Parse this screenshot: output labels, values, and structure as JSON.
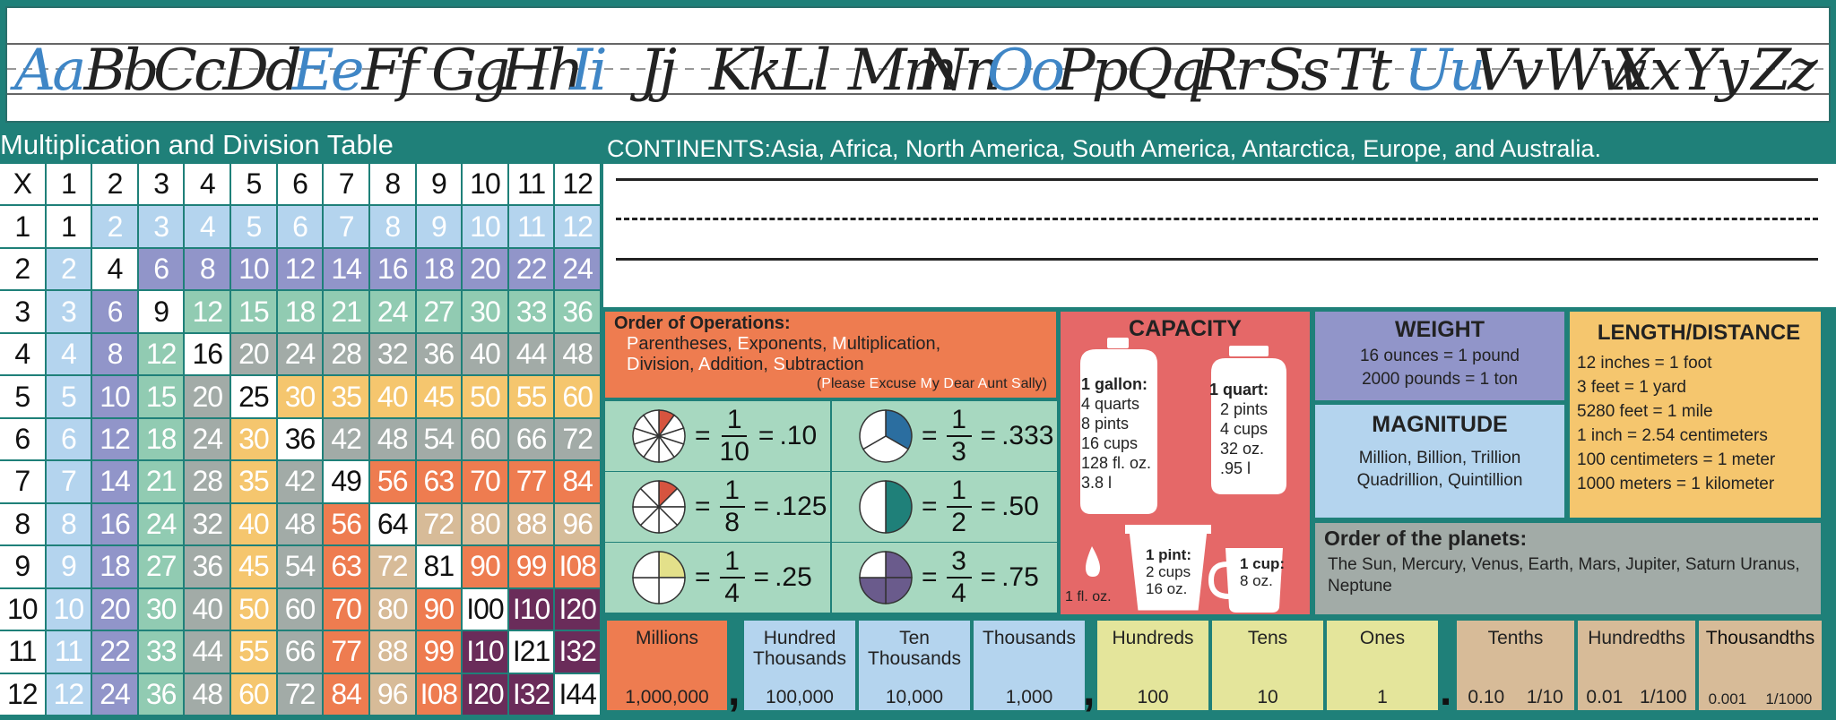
{
  "cursive": {
    "pairs": [
      {
        "text": "Aa",
        "vowel": true
      },
      {
        "text": "Bb",
        "vowel": false
      },
      {
        "text": "Cc",
        "vowel": false
      },
      {
        "text": "Dd",
        "vowel": false
      },
      {
        "text": "Ee",
        "vowel": true
      },
      {
        "text": "Ff",
        "vowel": false
      },
      {
        "text": "Gg",
        "vowel": false
      },
      {
        "text": "Hh",
        "vowel": false
      },
      {
        "text": "Ii",
        "vowel": true
      },
      {
        "text": "Jj",
        "vowel": false
      },
      {
        "text": "Kk",
        "vowel": false
      },
      {
        "text": "Ll",
        "vowel": false
      },
      {
        "text": "Mm",
        "vowel": false
      },
      {
        "text": "Nn",
        "vowel": false
      },
      {
        "text": "Oo",
        "vowel": true
      },
      {
        "text": "Pp",
        "vowel": false
      },
      {
        "text": "Qq",
        "vowel": false
      },
      {
        "text": "Rr",
        "vowel": false
      },
      {
        "text": "Ss",
        "vowel": false
      },
      {
        "text": "Tt",
        "vowel": false
      },
      {
        "text": "Uu",
        "vowel": true
      },
      {
        "text": "Vv",
        "vowel": false
      },
      {
        "text": "Ww",
        "vowel": false
      },
      {
        "text": "Xx",
        "vowel": false
      },
      {
        "text": "Yy",
        "vowel": false
      },
      {
        "text": "Zz",
        "vowel": false
      }
    ]
  },
  "multiplication": {
    "title": "Multiplication and Division Table",
    "corner": "X",
    "size": 12
  },
  "continents": "CONTINENTS:Asia, Africa, North America, South America, Antarctica, Europe, and Australia.",
  "order_of_operations": {
    "title": "Order of Operations:",
    "line1": [
      {
        "initial": "P",
        "rest": "arentheses, "
      },
      {
        "initial": "E",
        "rest": "xponents, "
      },
      {
        "initial": "M",
        "rest": "ultiplication,"
      }
    ],
    "line2": [
      {
        "initial": "D",
        "rest": "ivision, "
      },
      {
        "initial": "A",
        "rest": "ddition, "
      },
      {
        "initial": "S",
        "rest": "ubtraction"
      }
    ],
    "mnemonic": [
      {
        "initial": "P",
        "rest": "lease "
      },
      {
        "initial": "E",
        "rest": "xcuse "
      },
      {
        "initial": "M",
        "rest": "y "
      },
      {
        "initial": "D",
        "rest": "ear "
      },
      {
        "initial": "A",
        "rest": "unt "
      },
      {
        "initial": "S",
        "rest": "ally"
      }
    ]
  },
  "fractions": [
    {
      "num": "1",
      "den": "10",
      "dec": ".10",
      "slices": 10,
      "filled": 1,
      "color": "#d6543f"
    },
    {
      "num": "1",
      "den": "3",
      "dec": ".333",
      "slices": 3,
      "filled": 1,
      "color": "#2b6ea0"
    },
    {
      "num": "1",
      "den": "8",
      "dec": ".125",
      "slices": 8,
      "filled": 1,
      "color": "#d6543f"
    },
    {
      "num": "1",
      "den": "2",
      "dec": ".50",
      "slices": 2,
      "filled": 1,
      "color": "#1f8079"
    },
    {
      "num": "1",
      "den": "4",
      "dec": ".25",
      "slices": 4,
      "filled": 1,
      "color": "#e3e08a"
    },
    {
      "num": "3",
      "den": "4",
      "dec": ".75",
      "slices": 4,
      "filled": 3,
      "color": "#6a5b8c"
    }
  ],
  "capacity": {
    "title": "CAPACITY",
    "gallon": {
      "head": "1 gallon:",
      "lines": [
        "4 quarts",
        "8 pints",
        "16 cups",
        "128 fl. oz.",
        "3.8 l"
      ]
    },
    "quart": {
      "head": "1 quart:",
      "lines": [
        "2 pints",
        "4 cups",
        "32 oz.",
        ".95 l"
      ]
    },
    "pint": {
      "head": "1 pint:",
      "lines": [
        "2 cups",
        "16 oz."
      ]
    },
    "cup": {
      "head": "1 cup:",
      "lines": [
        "8 oz."
      ]
    },
    "floz": "1 fl. oz."
  },
  "weight": {
    "title": "WEIGHT",
    "lines": [
      "16 ounces = 1 pound",
      "2000 pounds = 1 ton"
    ]
  },
  "magnitude": {
    "title": "MAGNITUDE",
    "lines": [
      "Million, Billion, Trillion",
      "Quadrillion, Quintillion"
    ]
  },
  "length": {
    "title": "LENGTH/DISTANCE",
    "lines": [
      "12 inches = 1 foot",
      "3 feet = 1 yard",
      "5280 feet = 1 mile",
      "1 inch = 2.54 centimeters",
      "100 centimeters = 1 meter",
      "1000 meters = 1 kilometer"
    ]
  },
  "planets": {
    "title": "Order of the planets:",
    "text": "The Sun, Mercury, Venus, Earth, Mars, Jupiter, Saturn Uranus, Neptune"
  },
  "place_value": [
    {
      "label": "Millions",
      "num": "1,000,000",
      "color": "#ee7c50"
    },
    {
      "label": "Hundred Thousands",
      "num": "100,000",
      "color": "#b4d4ee"
    },
    {
      "label": "Ten Thousands",
      "num": "10,000",
      "color": "#b4d4ee"
    },
    {
      "label": "Thousands",
      "num": "1,000",
      "color": "#b4d4ee"
    },
    {
      "label": "Hundreds",
      "num": "100",
      "color": "#e4e59b"
    },
    {
      "label": "Tens",
      "num": "10",
      "color": "#e4e59b"
    },
    {
      "label": "Ones",
      "num": "1",
      "color": "#e4e59b"
    },
    {
      "label": "Tenths",
      "num": "0.10",
      "frac": "1/10",
      "color": "#d7bb98"
    },
    {
      "label": "Hundredths",
      "num": "0.01",
      "frac": "1/100",
      "color": "#d7bb98"
    },
    {
      "label": "Thousandths",
      "num": "0.001",
      "frac": "1/1000",
      "color": "#d7bb98"
    }
  ],
  "separators": {
    "comma": ",",
    "point": "."
  }
}
